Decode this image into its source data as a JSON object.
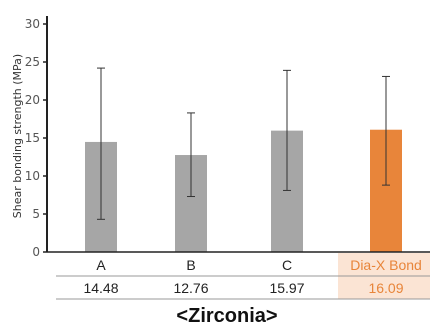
{
  "chart_data": {
    "type": "bar",
    "ylabel": "Shear bonding strength (MPa)",
    "ylim": [
      0,
      30
    ],
    "yticks": [
      0,
      5,
      10,
      15,
      20,
      25,
      30
    ],
    "categories": [
      "A",
      "B",
      "C",
      "Dia-X Bond"
    ],
    "values": [
      14.48,
      12.76,
      15.97,
      16.09
    ],
    "value_labels": [
      "14.48",
      "12.76",
      "15.97",
      "16.09"
    ],
    "error_low": [
      4.3,
      7.3,
      8.1,
      8.8
    ],
    "error_high": [
      24.2,
      18.3,
      23.9,
      23.1
    ],
    "highlight_index": 3,
    "caption": "<Zirconia>",
    "grid": false,
    "colors": {
      "bar": "#a6a6a6",
      "highlight_bar": "#e8853a",
      "highlight_text": "#e8853a",
      "highlight_cell": "#fbe4d4",
      "axis": "#222222",
      "error": "#333333"
    }
  }
}
